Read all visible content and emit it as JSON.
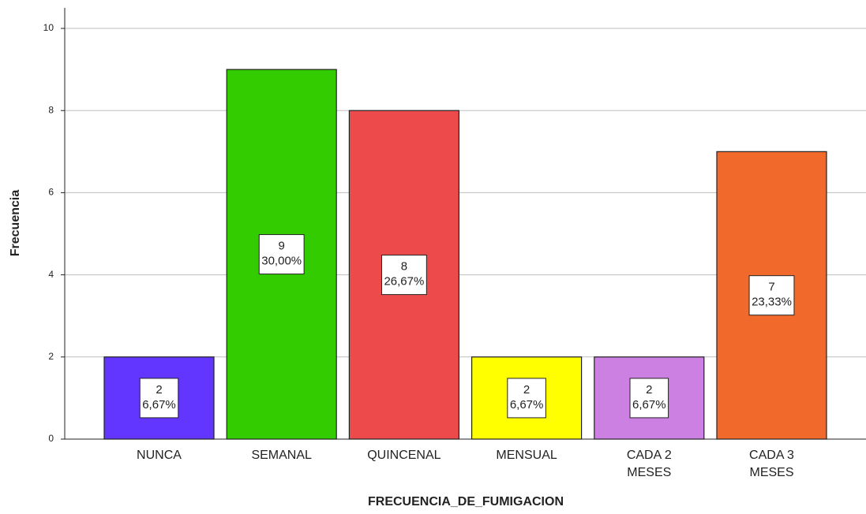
{
  "chart_data": {
    "type": "bar",
    "x_label": "FRECUENCIA_DE_FUMIGACION",
    "y_label": "Frecuencia",
    "categories": [
      "NUNCA",
      "SEMANAL",
      "QUINCENAL",
      "MENSUAL",
      "CADA 2 MESES",
      "CADA 3 MESES"
    ],
    "values": [
      2,
      9,
      8,
      2,
      2,
      7
    ],
    "percentages": [
      6.67,
      30.0,
      26.67,
      6.67,
      6.67,
      23.33
    ],
    "percentage_labels": [
      "6,67%",
      "30,00%",
      "26,67%",
      "6,67%",
      "6,67%",
      "23,33%"
    ],
    "colors": [
      "#6236ff",
      "#33cc00",
      "#ec4a4b",
      "#ffff00",
      "#cc80e2",
      "#f2692c"
    ],
    "ylim": [
      0,
      10.5
    ],
    "yticks": [
      0,
      2,
      4,
      6,
      8,
      10
    ],
    "grid": true
  }
}
